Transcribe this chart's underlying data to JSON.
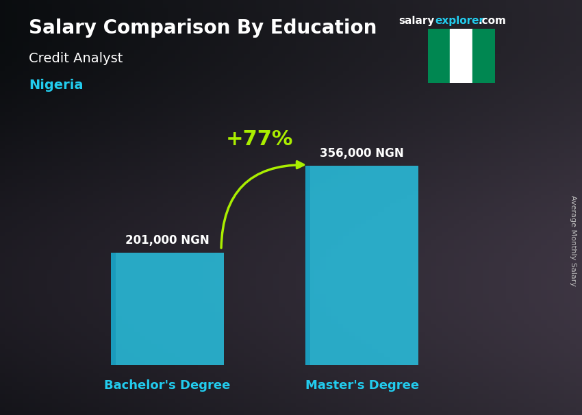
{
  "title": "Salary Comparison By Education",
  "subtitle_job": "Credit Analyst",
  "subtitle_country": "Nigeria",
  "watermark_salary": "salary",
  "watermark_explorer": "explorer",
  "watermark_com": ".com",
  "ylabel": "Average Monthly Salary",
  "categories": [
    "Bachelor's Degree",
    "Master's Degree"
  ],
  "values": [
    201000,
    356000
  ],
  "value_labels": [
    "201,000 NGN",
    "356,000 NGN"
  ],
  "bar_color": "#29C8E8",
  "bar_alpha": 0.82,
  "pct_change": "+77%",
  "pct_color": "#AAEE00",
  "arrow_color": "#AAEE00",
  "title_color": "#FFFFFF",
  "subtitle_job_color": "#FFFFFF",
  "subtitle_country_color": "#22CCEE",
  "value_label_color": "#FFFFFF",
  "xlabel_color": "#22CCEE",
  "watermark_color_salary": "#FFFFFF",
  "watermark_color_explorer": "#22CCEE",
  "watermark_color_com": "#FFFFFF",
  "right_label_color": "#AAAAAA",
  "bg_color": "#1a1a2e",
  "ylim": [
    0,
    430000
  ],
  "bar_positions": [
    0.27,
    0.65
  ],
  "bar_width": 0.22,
  "figsize": [
    8.5,
    6.06
  ],
  "dpi": 100,
  "flag_green": "#008751",
  "flag_white": "#FFFFFF"
}
